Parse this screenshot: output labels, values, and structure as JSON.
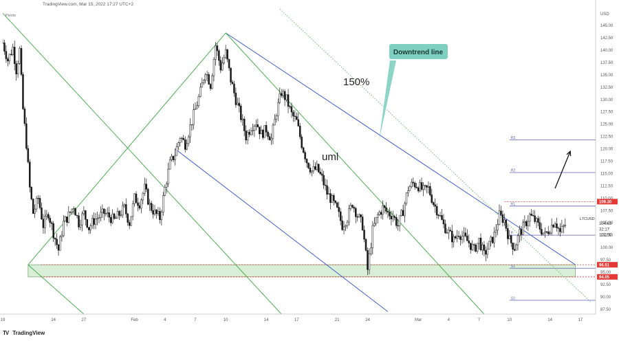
{
  "header": {
    "source_line": "TradingView.com, Mar 15, 2022 17:27 UTC+2",
    "indicator_label": "Pivots",
    "brand": "TradingView",
    "currency": "USD"
  },
  "colors": {
    "candle": "#1a1a1a",
    "green_line": "#4caf50",
    "blue_line": "#3f5fd1",
    "pivot_line": "#5c5cb8",
    "red_level": "#e53935",
    "zone_fill": "#d8eed6",
    "callout": "#7ecfc0"
  },
  "chart_data": {
    "type": "candlestick",
    "symbol": "LTCUSD",
    "y_axis": {
      "min": 86.5,
      "max": 148.5,
      "ticks": [
        87.5,
        90.0,
        92.5,
        95.0,
        97.5,
        100.0,
        102.5,
        105.0,
        107.5,
        110.0,
        112.5,
        115.0,
        117.5,
        120.0,
        122.5,
        125.0,
        127.5,
        130.0,
        132.5,
        135.0,
        137.5,
        140.0,
        142.5,
        145.0
      ],
      "tick_labels": [
        "87.50",
        "90.00",
        "92.50",
        "95.00",
        "97.50",
        "100.00",
        "102.50",
        "105.00",
        "107.50",
        "110.00",
        "112.50",
        "115.00",
        "117.50",
        "120.00",
        "122.50",
        "125.00",
        "127.50",
        "130.00",
        "132.50",
        "135.00",
        "137.50",
        "140.00",
        "142.50",
        "145.00"
      ],
      "top_label": "USD"
    },
    "x_axis": {
      "dates": [
        "2022-01-19",
        "2022-01-24",
        "2022-01-27",
        "2022-02-01",
        "2022-02-04",
        "2022-02-07",
        "2022-02-10",
        "2022-02-14",
        "2022-02-17",
        "2022-02-21",
        "2022-02-24",
        "2022-02-28",
        "2022-03-01",
        "2022-03-04",
        "2022-03-07",
        "2022-03-10",
        "2022-03-14",
        "2022-03-17"
      ],
      "labels": [
        "19",
        "24",
        "27",
        "Feb",
        "4",
        "7",
        "10",
        "14",
        "17",
        "21",
        "24",
        "",
        "Mar",
        "4",
        "7",
        "10",
        "14",
        "17"
      ],
      "domain": [
        "2022-01-19 00:00",
        "2022-03-18 12:00"
      ]
    },
    "price_path": [
      [
        "2022-01-19 00:00",
        141.5
      ],
      [
        "2022-01-19 12:00",
        138.0
      ],
      [
        "2022-01-20 00:00",
        140.5
      ],
      [
        "2022-01-20 08:00",
        136.0
      ],
      [
        "2022-01-20 16:00",
        140.0
      ],
      [
        "2022-01-21 00:00",
        128.0
      ],
      [
        "2022-01-21 08:00",
        121.0
      ],
      [
        "2022-01-21 16:00",
        112.0
      ],
      [
        "2022-01-22 00:00",
        107.0
      ],
      [
        "2022-01-22 12:00",
        110.0
      ],
      [
        "2022-01-23 00:00",
        104.5
      ],
      [
        "2022-01-23 12:00",
        107.0
      ],
      [
        "2022-01-24 00:00",
        103.0
      ],
      [
        "2022-01-24 12:00",
        99.5
      ],
      [
        "2022-01-25 00:00",
        105.0
      ],
      [
        "2022-01-25 12:00",
        106.5
      ],
      [
        "2022-01-26 00:00",
        108.5
      ],
      [
        "2022-01-26 12:00",
        105.0
      ],
      [
        "2022-01-27 00:00",
        107.0
      ],
      [
        "2022-01-27 12:00",
        104.0
      ],
      [
        "2022-01-28 00:00",
        105.5
      ],
      [
        "2022-01-29 00:00",
        107.0
      ],
      [
        "2022-01-30 00:00",
        105.5
      ],
      [
        "2022-01-31 00:00",
        108.0
      ],
      [
        "2022-01-31 12:00",
        105.0
      ],
      [
        "2022-02-01 00:00",
        110.0
      ],
      [
        "2022-02-01 12:00",
        109.0
      ],
      [
        "2022-02-02 00:00",
        112.0
      ],
      [
        "2022-02-02 12:00",
        108.5
      ],
      [
        "2022-02-03 00:00",
        107.0
      ],
      [
        "2022-02-03 12:00",
        106.0
      ],
      [
        "2022-02-04 00:00",
        112.0
      ],
      [
        "2022-02-04 12:00",
        117.0
      ],
      [
        "2022-02-05 00:00",
        119.0
      ],
      [
        "2022-02-05 12:00",
        122.5
      ],
      [
        "2022-02-06 00:00",
        121.0
      ],
      [
        "2022-02-06 12:00",
        124.5
      ],
      [
        "2022-02-07 00:00",
        128.0
      ],
      [
        "2022-02-07 12:00",
        131.5
      ],
      [
        "2022-02-08 00:00",
        136.0
      ],
      [
        "2022-02-08 12:00",
        133.0
      ],
      [
        "2022-02-09 00:00",
        141.0
      ],
      [
        "2022-02-09 12:00",
        136.5
      ],
      [
        "2022-02-10 00:00",
        139.5
      ],
      [
        "2022-02-10 12:00",
        134.0
      ],
      [
        "2022-02-11 00:00",
        130.0
      ],
      [
        "2022-02-11 12:00",
        126.5
      ],
      [
        "2022-02-12 00:00",
        122.5
      ],
      [
        "2022-02-12 12:00",
        124.5
      ],
      [
        "2022-02-13 00:00",
        125.5
      ],
      [
        "2022-02-13 12:00",
        123.0
      ],
      [
        "2022-02-14 00:00",
        124.0
      ],
      [
        "2022-02-14 12:00",
        122.0
      ],
      [
        "2022-02-15 00:00",
        127.5
      ],
      [
        "2022-02-15 12:00",
        131.5
      ],
      [
        "2022-02-16 00:00",
        130.0
      ],
      [
        "2022-02-16 12:00",
        127.0
      ],
      [
        "2022-02-17 00:00",
        125.5
      ],
      [
        "2022-02-17 12:00",
        121.0
      ],
      [
        "2022-02-18 00:00",
        117.5
      ],
      [
        "2022-02-18 12:00",
        115.5
      ],
      [
        "2022-02-19 00:00",
        116.0
      ],
      [
        "2022-02-19 12:00",
        114.0
      ],
      [
        "2022-02-20 00:00",
        111.0
      ],
      [
        "2022-02-20 12:00",
        109.5
      ],
      [
        "2022-02-21 00:00",
        107.5
      ],
      [
        "2022-02-21 12:00",
        104.5
      ],
      [
        "2022-02-22 00:00",
        106.0
      ],
      [
        "2022-02-22 12:00",
        109.0
      ],
      [
        "2022-02-23 00:00",
        106.5
      ],
      [
        "2022-02-23 12:00",
        104.5
      ],
      [
        "2022-02-24 00:00",
        95.5
      ],
      [
        "2022-02-24 12:00",
        103.5
      ],
      [
        "2022-02-25 00:00",
        106.5
      ],
      [
        "2022-02-25 12:00",
        108.0
      ],
      [
        "2022-02-26 00:00",
        107.0
      ],
      [
        "2022-02-26 12:00",
        106.5
      ],
      [
        "2022-02-27 00:00",
        104.5
      ],
      [
        "2022-02-27 12:00",
        107.5
      ],
      [
        "2022-02-28 00:00",
        112.0
      ],
      [
        "2022-02-28 12:00",
        113.0
      ],
      [
        "2022-03-01 00:00",
        112.5
      ],
      [
        "2022-03-01 12:00",
        111.5
      ],
      [
        "2022-03-02 00:00",
        112.0
      ],
      [
        "2022-03-02 12:00",
        109.0
      ],
      [
        "2022-03-03 00:00",
        107.0
      ],
      [
        "2022-03-03 12:00",
        104.5
      ],
      [
        "2022-03-04 00:00",
        103.0
      ],
      [
        "2022-03-04 12:00",
        101.5
      ],
      [
        "2022-03-05 00:00",
        103.0
      ],
      [
        "2022-03-05 12:00",
        102.0
      ],
      [
        "2022-03-06 00:00",
        101.0
      ],
      [
        "2022-03-06 12:00",
        99.5
      ],
      [
        "2022-03-07 00:00",
        101.5
      ],
      [
        "2022-03-07 12:00",
        98.5
      ],
      [
        "2022-03-08 00:00",
        100.5
      ],
      [
        "2022-03-08 12:00",
        102.5
      ],
      [
        "2022-03-09 00:00",
        106.5
      ],
      [
        "2022-03-09 12:00",
        105.5
      ],
      [
        "2022-03-10 00:00",
        101.5
      ],
      [
        "2022-03-10 12:00",
        100.0
      ],
      [
        "2022-03-11 00:00",
        103.0
      ],
      [
        "2022-03-11 12:00",
        104.5
      ],
      [
        "2022-03-12 00:00",
        106.5
      ],
      [
        "2022-03-12 12:00",
        105.5
      ],
      [
        "2022-03-13 00:00",
        104.0
      ],
      [
        "2022-03-13 12:00",
        102.5
      ],
      [
        "2022-03-14 00:00",
        104.0
      ],
      [
        "2022-03-14 12:00",
        105.5
      ],
      [
        "2022-03-15 00:00",
        103.0
      ],
      [
        "2022-03-15 12:00",
        104.63
      ]
    ],
    "current_price": {
      "label": "104.63",
      "countdown": "32:17",
      "pivot_price": "102.50",
      "pivot_tag": "P"
    },
    "pivots": [
      {
        "name": "R3",
        "value": 121.8,
        "from": "2022-03-10 00:00"
      },
      {
        "name": "R2",
        "value": 115.2,
        "from": "2022-03-10 00:00"
      },
      {
        "name": "R1",
        "value": 108.4,
        "from": "2022-03-10 00:00"
      },
      {
        "name": "P",
        "value": 102.5,
        "from": "2022-03-10 00:00"
      },
      {
        "name": "S1",
        "value": 95.8,
        "from": "2022-03-10 00:00"
      },
      {
        "name": "S2",
        "value": 89.3,
        "from": "2022-03-10 00:00"
      }
    ],
    "levels": [
      {
        "label": "109.30",
        "value": 109.3
      },
      {
        "label": "96.51",
        "value": 96.51
      },
      {
        "label": "94.05",
        "value": 94.05
      }
    ],
    "support_zone": {
      "low": 94.05,
      "high": 96.51,
      "from": "2022-01-21 12:00",
      "to": "2022-03-16 12:00"
    },
    "trendlines": [
      {
        "name": "downtrend-line",
        "color": "blue",
        "from": [
          "2022-02-10 00:00",
          143.5
        ],
        "to": [
          "2022-03-16 12:00",
          96.5
        ]
      },
      {
        "name": "lower-channel-line",
        "color": "blue",
        "from": [
          "2022-02-05 00:00",
          120.0
        ],
        "to": [
          "2022-02-26 00:00",
          87.0
        ]
      },
      {
        "name": "pitchfork-median-line",
        "color": "green",
        "from": [
          "2022-02-10 00:00",
          143.5
        ],
        "to": [
          "2022-03-07 12:00",
          86.5
        ]
      },
      {
        "name": "pitchfork-upper-line",
        "color": "green",
        "from": [
          "2022-01-19 00:00",
          147.5
        ],
        "to": [
          "2022-02-15 12:00",
          86.5
        ]
      },
      {
        "name": "pitchfork-lower-line",
        "color": "green",
        "from": [
          "2022-01-21 12:00",
          96.5
        ],
        "to": [
          "2022-01-27 00:00",
          86.5
        ]
      },
      {
        "name": "pitchfork-handle-line",
        "color": "green",
        "from": [
          "2022-01-21 12:00",
          96.5
        ],
        "to": [
          "2022-02-10 00:00",
          143.5
        ]
      },
      {
        "name": "warning-line-150",
        "color": "green-dotted",
        "from": [
          "2022-02-15 00:00",
          149.0
        ],
        "to": [
          "2022-03-18 00:00",
          89.0
        ]
      }
    ],
    "annotations": [
      {
        "name": "callout-downtrend-line",
        "text": "Downtrend line"
      },
      {
        "name": "label-150",
        "text": "150%"
      },
      {
        "name": "label-uml",
        "text": "uml"
      }
    ],
    "arrow": {
      "from": [
        "2022-03-14 12:00",
        112.0
      ],
      "to": [
        "2022-03-16 00:00",
        119.5
      ]
    }
  }
}
